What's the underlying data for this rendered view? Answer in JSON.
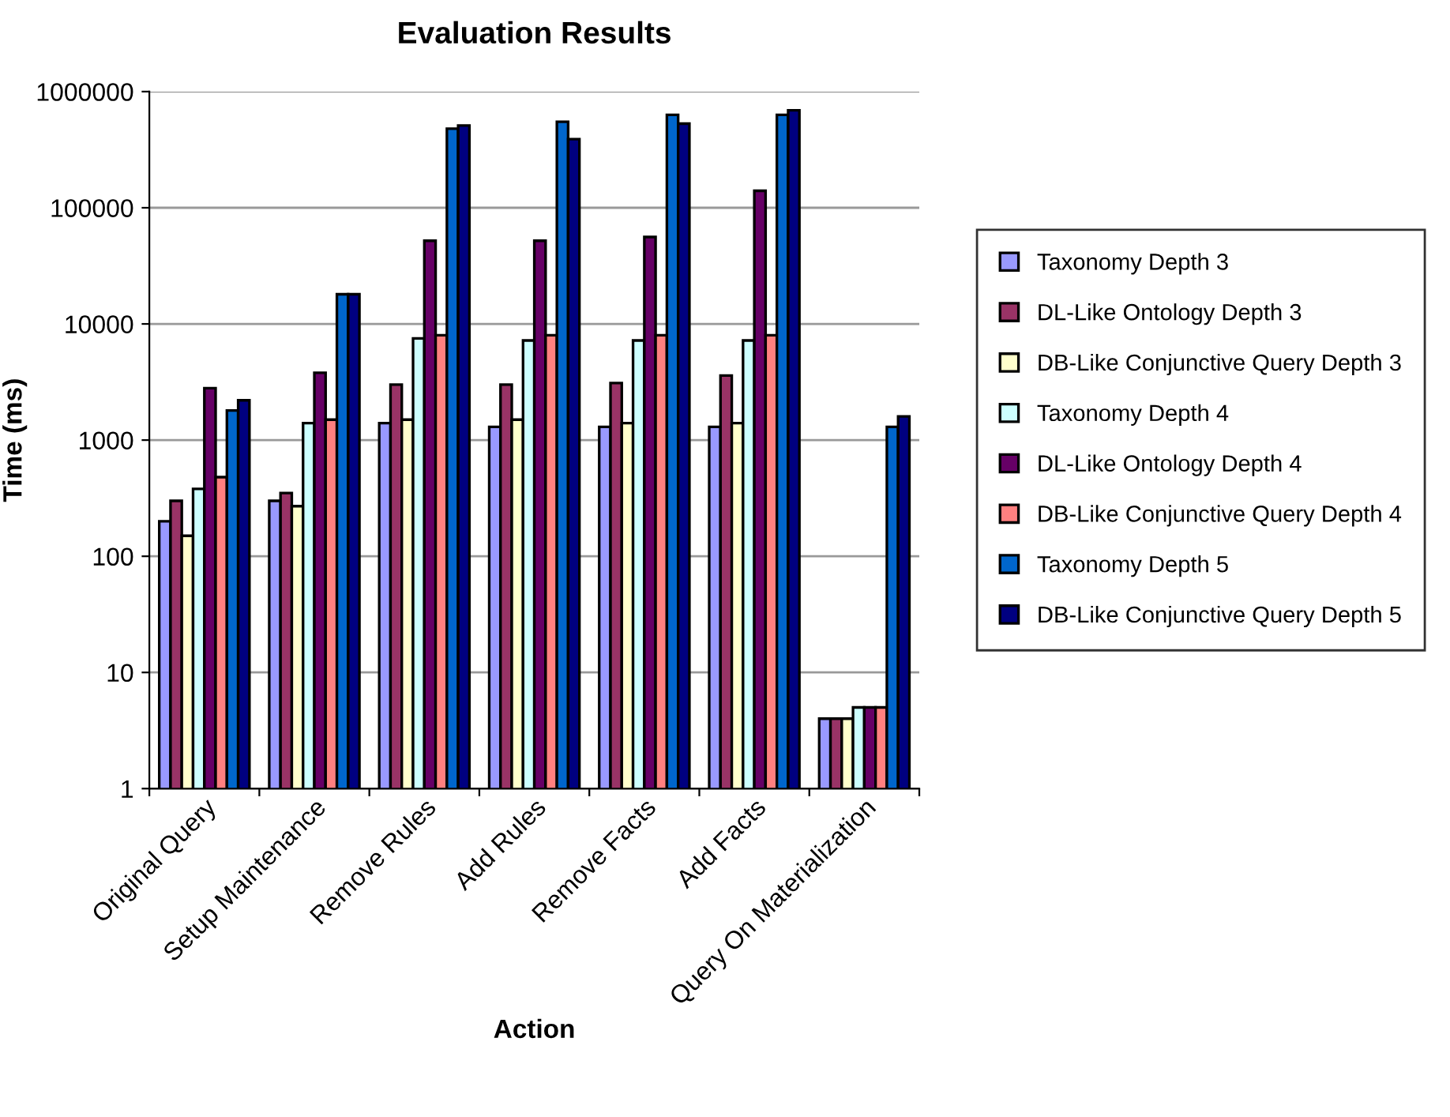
{
  "chart_data": {
    "type": "bar",
    "title": "Evaluation Results",
    "xlabel": "Action",
    "ylabel": "Time (ms)",
    "categories": [
      "Original Query",
      "Setup Maintenance",
      "Remove Rules",
      "Add Rules",
      "Remove Facts",
      "Add Facts",
      "Query On Materialization"
    ],
    "series": [
      {
        "name": "Taxonomy Depth 3",
        "color": "#9999ff",
        "values": [
          200,
          300,
          1400,
          1300,
          1300,
          1300,
          4
        ]
      },
      {
        "name": "DL-Like Ontology Depth 3",
        "color": "#993366",
        "values": [
          300,
          350,
          3000,
          3000,
          3100,
          3600,
          4
        ]
      },
      {
        "name": "DB-Like Conjunctive Query Depth 3",
        "color": "#ffffcc",
        "values": [
          150,
          270,
          1500,
          1500,
          1400,
          1400,
          4
        ]
      },
      {
        "name": "Taxonomy Depth 4",
        "color": "#ccffff",
        "values": [
          380,
          1400,
          7500,
          7200,
          7200,
          7200,
          5
        ]
      },
      {
        "name": "DL-Like Ontology Depth 4",
        "color": "#660066",
        "values": [
          2800,
          3800,
          52000,
          52000,
          56000,
          140000,
          5
        ]
      },
      {
        "name": "DB-Like Conjunctive Query Depth 4",
        "color": "#ff8080",
        "values": [
          480,
          1500,
          8000,
          8000,
          8000,
          8000,
          5
        ]
      },
      {
        "name": "Taxonomy Depth 5",
        "color": "#0066cc",
        "values": [
          1800,
          18000,
          480000,
          550000,
          630000,
          630000,
          1300
        ]
      },
      {
        "name": "DB-Like Conjunctive Query Depth 5",
        "color": "#000080",
        "values": [
          2200,
          18000,
          510000,
          390000,
          530000,
          690000,
          1600
        ]
      }
    ],
    "log": "y",
    "ylim": [
      1,
      1000000
    ],
    "yticks": [
      1,
      10,
      100,
      1000,
      10000,
      100000,
      1000000
    ],
    "grid": "y",
    "legend": "right"
  }
}
